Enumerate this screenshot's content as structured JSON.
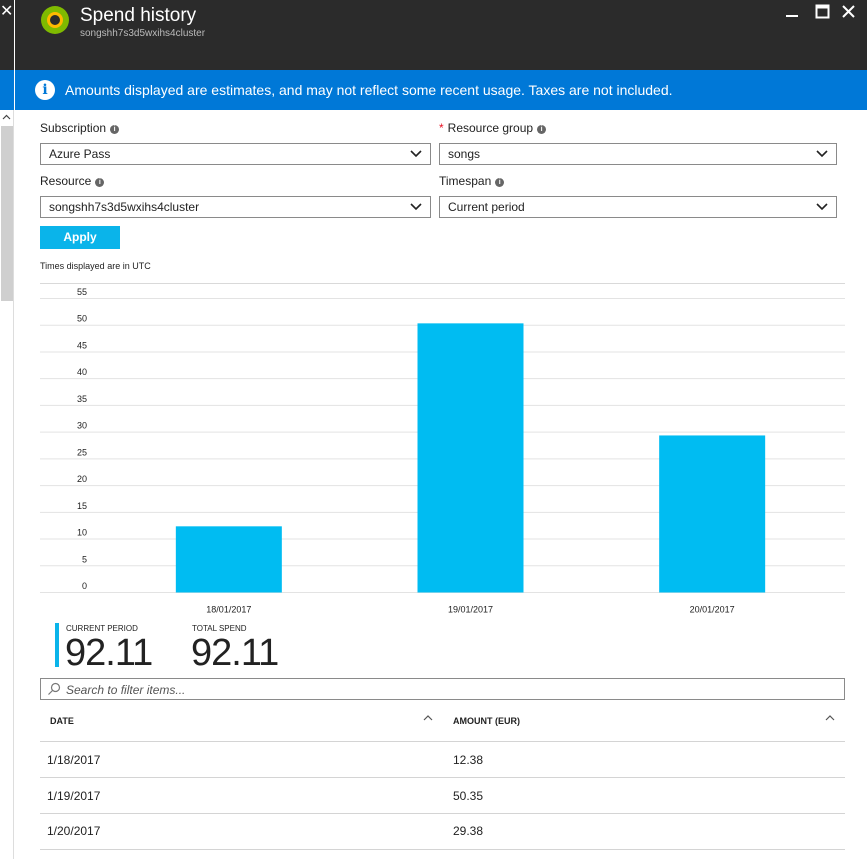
{
  "header": {
    "title": "Spend history",
    "subtitle": "songshh7s3d5wxihs4cluster",
    "left_close": "✕",
    "minimize": "▁",
    "maximize": "☐",
    "close": "✕"
  },
  "info": {
    "icon": "i",
    "text": "Amounts displayed are estimates, and may not reflect some recent usage. Taxes are not included."
  },
  "form": {
    "subscription": {
      "label": "Subscription",
      "value": "Azure Pass"
    },
    "resource_group": {
      "required_mark": "*",
      "label": "Resource group",
      "value": "songs"
    },
    "resource": {
      "label": "Resource",
      "value": "songshh7s3d5wxihs4cluster"
    },
    "timespan": {
      "label": "Timespan",
      "value": "Current period"
    },
    "info_tip": "i",
    "apply_label": "Apply",
    "utc_note": "Times displayed are in UTC"
  },
  "chart_data": {
    "type": "bar",
    "categories": [
      "18/01/2017",
      "19/01/2017",
      "20/01/2017"
    ],
    "values": [
      12.38,
      50.35,
      29.38
    ],
    "ylim": [
      0,
      55
    ],
    "y_ticks": [
      0,
      5,
      10,
      15,
      20,
      25,
      30,
      35,
      40,
      45,
      50,
      55
    ],
    "grid": true,
    "bar_color": "#00bcf2"
  },
  "summary": {
    "current_period_label": "CURRENT PERIOD",
    "current_period_value": "92.11",
    "total_spend_label": "TOTAL SPEND",
    "total_spend_value": "92.11"
  },
  "filter": {
    "placeholder": "Search to filter items..."
  },
  "table": {
    "columns": [
      "DATE",
      "AMOUNT (EUR)"
    ],
    "rows": [
      [
        "1/18/2017",
        "12.38"
      ],
      [
        "1/19/2017",
        "50.35"
      ],
      [
        "1/20/2017",
        "29.38"
      ]
    ]
  },
  "colors": {
    "header_bg": "#2b2b2b",
    "info_bg": "#0078d7",
    "accent": "#0ab4ea"
  }
}
